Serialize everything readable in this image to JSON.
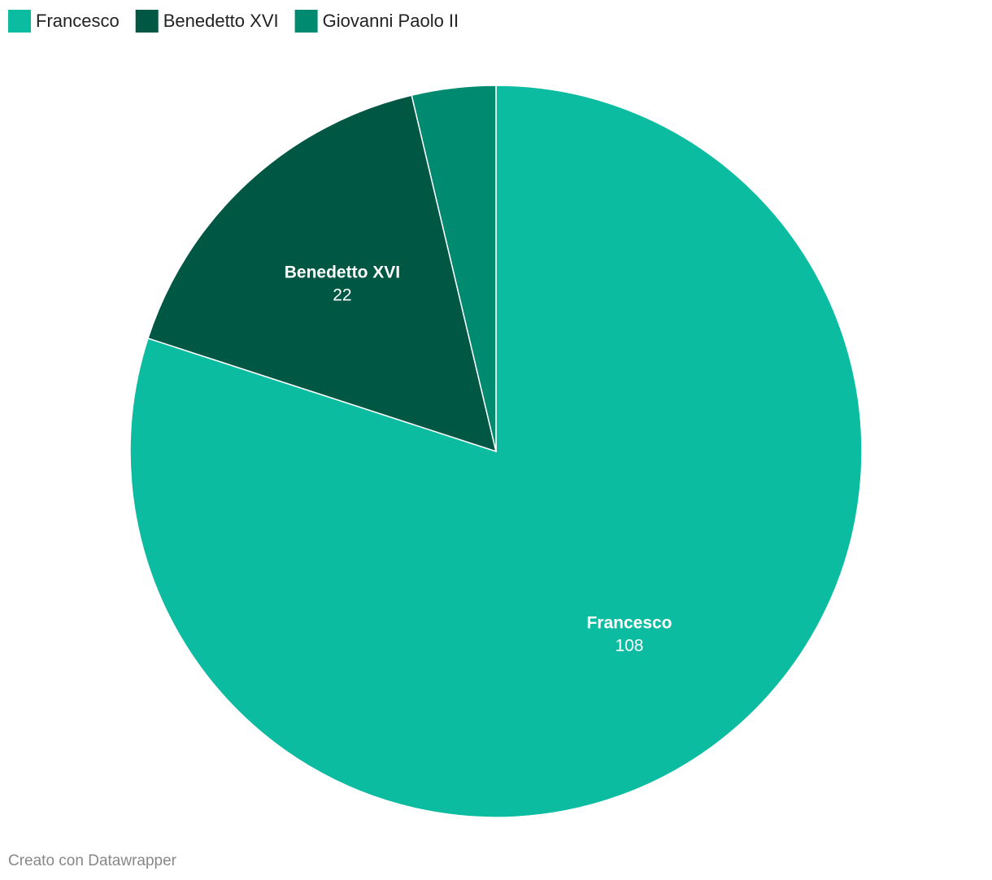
{
  "chart_data": {
    "type": "pie",
    "categories": [
      "Francesco",
      "Benedetto XVI",
      "Giovanni Paolo II"
    ],
    "values": [
      108,
      22,
      5
    ],
    "colors": [
      "#0bbca0",
      "#005744",
      "#008a70"
    ],
    "legend": "top-left",
    "credit": "Creato con Datawrapper"
  }
}
